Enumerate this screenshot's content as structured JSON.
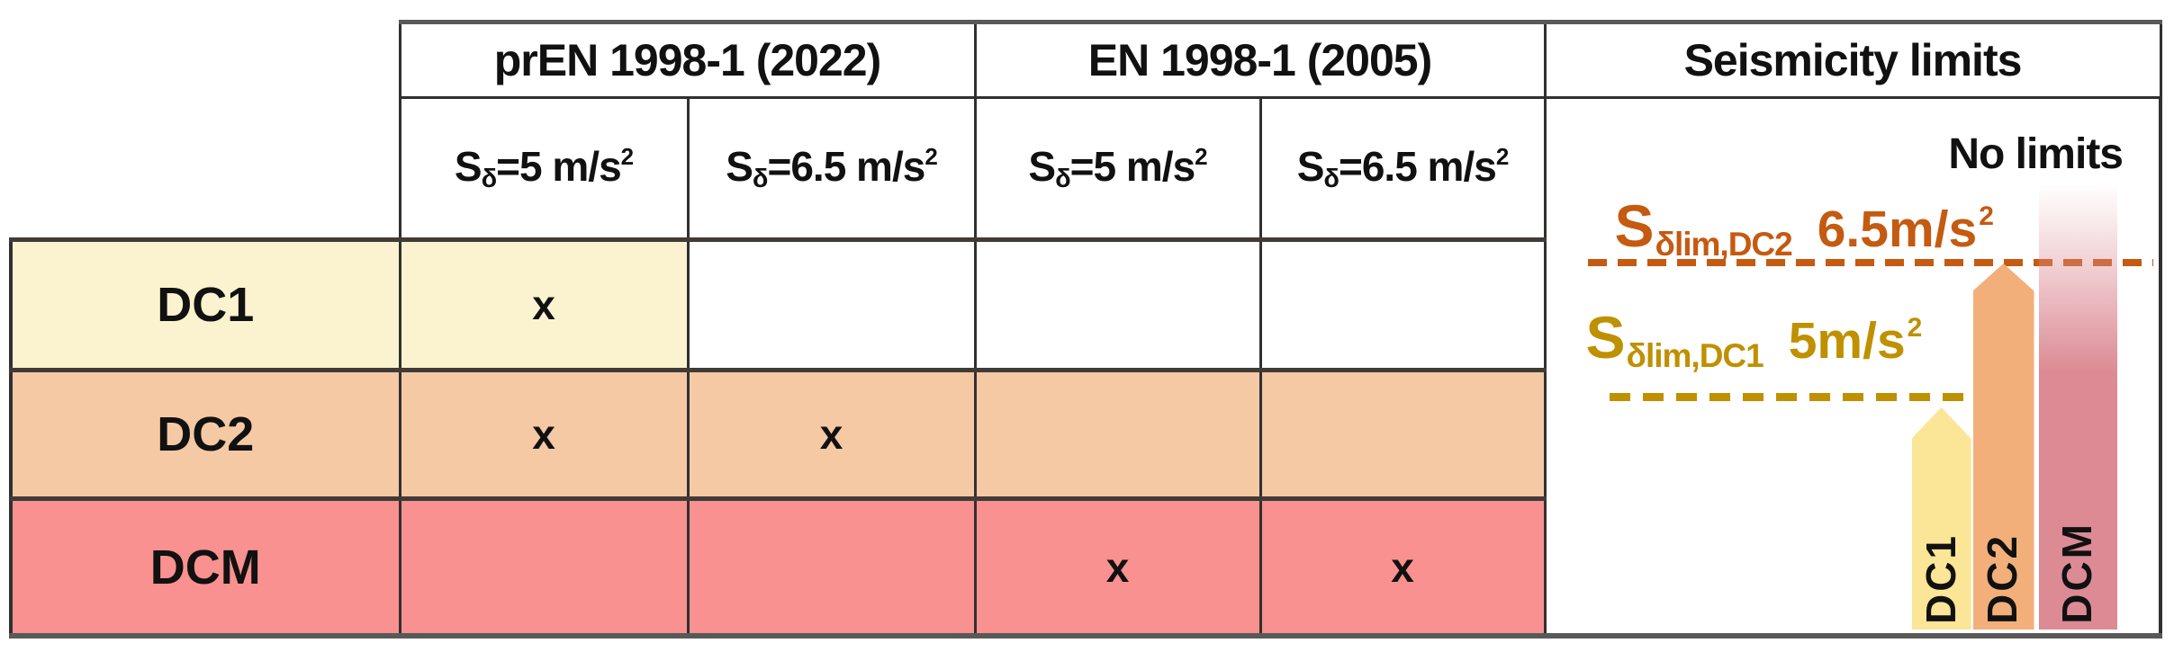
{
  "palette": {
    "row_dc1_bg": "#FBF2CF",
    "row_dc2_bg": "#F4C9A4",
    "row_dcm_bg": "#F8918F",
    "bar_dc1": "#FBE596",
    "bar_dc2": "#F3AF79",
    "bar_dcm": "#DC8B94",
    "accent_orange": "#C55A11",
    "accent_gold": "#BF9000",
    "grid_dark": "#303030",
    "grid_heavy": "#403B37",
    "grid_outer": "#595959",
    "text_color": "#111111"
  },
  "table": {
    "group_headers": [
      {
        "label": "prEN 1998-1 (2022)"
      },
      {
        "label": "EN 1998-1 (2005)"
      },
      {
        "label": "Seismicity limits"
      }
    ],
    "sub_headers": [
      {
        "symbol": "S",
        "symbol_sub": "δ",
        "value": "=5 m/s",
        "sup": "2"
      },
      {
        "symbol": "S",
        "symbol_sub": "δ",
        "value": "=6.5 m/s",
        "sup": "2"
      },
      {
        "symbol": "S",
        "symbol_sub": "δ",
        "value": "=5 m/s",
        "sup": "2"
      },
      {
        "symbol": "S",
        "symbol_sub": "δ",
        "value": "=6.5 m/s",
        "sup": "2"
      }
    ],
    "rows": [
      {
        "label": "DC1",
        "marks": [
          "x",
          "",
          "",
          ""
        ]
      },
      {
        "label": "DC2",
        "marks": [
          "x",
          "x",
          "",
          ""
        ]
      },
      {
        "label": "DCM",
        "marks": [
          "",
          "",
          "x",
          "x"
        ]
      }
    ]
  },
  "seismicity": {
    "no_limits_label": "No limits",
    "dc2_limit": {
      "symbol": "S",
      "symbol_sub": "δlim,DC2",
      "value": "6.5m/s",
      "sup": "2"
    },
    "dc1_limit": {
      "symbol": "S",
      "symbol_sub": "δlim,DC1",
      "value": "5m/s",
      "sup": "2"
    },
    "bars": [
      {
        "label": "DC1"
      },
      {
        "label": "DC2"
      },
      {
        "label": "DCM"
      }
    ]
  }
}
